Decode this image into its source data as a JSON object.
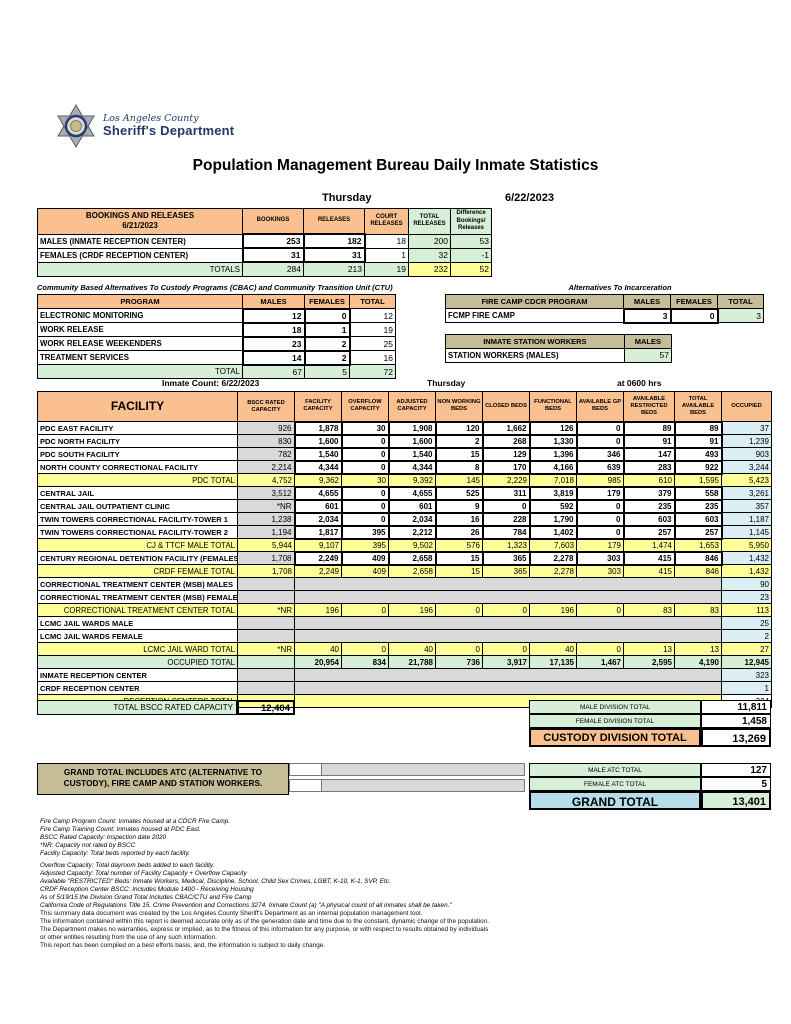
{
  "header": {
    "agency_line1": "Los Angeles County",
    "agency_line2": "Sheriff's Department",
    "title": "Population Management Bureau Daily Inmate Statistics",
    "day": "Thursday",
    "date": "6/22/2023"
  },
  "bookings": {
    "title": "BOOKINGS AND RELEASES",
    "subtitle": "6/21/2023",
    "columns": [
      "BOOKINGS",
      "RELEASES",
      "COURT RELEASES",
      "TOTAL RELEASES",
      "Difference Bookings/ Releases"
    ],
    "rows": [
      {
        "label": "MALES (INMATE RECEPTION CENTER)",
        "values": [
          "253",
          "182",
          "18",
          "200",
          "53"
        ]
      },
      {
        "label": "FEMALES (CRDF RECEPTION CENTER)",
        "values": [
          "31",
          "31",
          "1",
          "32",
          "-1"
        ]
      }
    ],
    "totals": {
      "label": "TOTALS",
      "values": [
        "284",
        "213",
        "19",
        "232",
        "52"
      ]
    }
  },
  "cbac": {
    "title": "Community Based Alternatives To Custody Programs (CBAC) and Community Transition Unit (CTU)",
    "columns": [
      "PROGRAM",
      "MALES",
      "FEMALES",
      "TOTAL"
    ],
    "rows": [
      {
        "label": "ELECTRONIC MONITORING",
        "values": [
          "12",
          "0",
          "12"
        ]
      },
      {
        "label": "WORK RELEASE",
        "values": [
          "18",
          "1",
          "19"
        ]
      },
      {
        "label": "WORK RELEASE WEEKENDERS",
        "values": [
          "23",
          "2",
          "25"
        ]
      },
      {
        "label": "TREATMENT SERVICES",
        "values": [
          "14",
          "2",
          "16"
        ]
      }
    ],
    "totals": {
      "label": "TOTAL",
      "values": [
        "67",
        "5",
        "72"
      ]
    }
  },
  "alternatives": {
    "title": "Alternatives To Incarceration",
    "fire_camp": {
      "columns": [
        "FIRE CAMP CDCR PROGRAM",
        "MALES",
        "FEMALES",
        "TOTAL"
      ],
      "row": {
        "label": "FCMP FIRE CAMP",
        "values": [
          "3",
          "0",
          "3"
        ]
      }
    },
    "station_workers": {
      "columns": [
        "INMATE STATION WORKERS",
        "MALES"
      ],
      "row": {
        "label": "STATION WORKERS (MALES)",
        "values": [
          "57"
        ]
      }
    }
  },
  "facility_table": {
    "count_label": "Inmate Count:  6/22/2023",
    "day": "Thursday",
    "time": "at 0600 hrs",
    "columns": [
      "FACILITY",
      "BSCC RATED CAPACITY",
      "FACILITY CAPACITY",
      "OVERFLOW CAPACITY",
      "ADJUSTED CAPACITY",
      "NON WORKING BEDS",
      "CLOSED BEDS",
      "FUNCTIONAL BEDS",
      "AVAILABLE GP BEDS",
      "AVAILABLE RESTRICTED BEDS",
      "TOTAL AVAILABLE BEDS",
      "OCCUPIED"
    ],
    "rows": [
      {
        "type": "data",
        "name": "PDC EAST FACILITY",
        "values": [
          "926",
          "1,878",
          "30",
          "1,908",
          "120",
          "1,662",
          "126",
          "0",
          "89",
          "89",
          "37"
        ]
      },
      {
        "type": "data",
        "name": "PDC NORTH FACILITY",
        "values": [
          "830",
          "1,600",
          "0",
          "1,600",
          "2",
          "268",
          "1,330",
          "0",
          "91",
          "91",
          "1,239"
        ]
      },
      {
        "type": "data",
        "name": "PDC SOUTH FACILITY",
        "values": [
          "782",
          "1,540",
          "0",
          "1,540",
          "15",
          "129",
          "1,396",
          "346",
          "147",
          "493",
          "903"
        ]
      },
      {
        "type": "data",
        "name": "NORTH COUNTY CORRECTIONAL FACILITY",
        "values": [
          "2,214",
          "4,344",
          "0",
          "4,344",
          "8",
          "170",
          "4,166",
          "639",
          "283",
          "922",
          "3,244"
        ]
      },
      {
        "type": "total",
        "name": "PDC TOTAL",
        "values": [
          "4,752",
          "9,362",
          "30",
          "9,392",
          "145",
          "2,229",
          "7,018",
          "985",
          "610",
          "1,595",
          "5,423"
        ]
      },
      {
        "type": "data",
        "name": "CENTRAL JAIL",
        "values": [
          "3,512",
          "4,655",
          "0",
          "4,655",
          "525",
          "311",
          "3,819",
          "179",
          "379",
          "558",
          "3,261"
        ]
      },
      {
        "type": "data",
        "name": "CENTRAL JAIL OUTPATIENT CLINIC",
        "values": [
          "*NR",
          "601",
          "0",
          "601",
          "9",
          "0",
          "592",
          "0",
          "235",
          "235",
          "357"
        ]
      },
      {
        "type": "data",
        "name": "TWIN TOWERS CORRECTIONAL FACILITY-TOWER 1",
        "values": [
          "1,238",
          "2,034",
          "0",
          "2,034",
          "16",
          "228",
          "1,790",
          "0",
          "603",
          "603",
          "1,187"
        ]
      },
      {
        "type": "data",
        "name": "TWIN TOWERS CORRECTIONAL FACILITY-TOWER 2",
        "values": [
          "1,194",
          "1,817",
          "395",
          "2,212",
          "26",
          "784",
          "1,402",
          "0",
          "257",
          "257",
          "1,145"
        ]
      },
      {
        "type": "total",
        "name": "CJ & TTCF MALE TOTAL",
        "values": [
          "5,944",
          "9,107",
          "395",
          "9,502",
          "576",
          "1,323",
          "7,603",
          "179",
          "1,474",
          "1,653",
          "5,950"
        ]
      },
      {
        "type": "data",
        "name": "CENTURY REGIONAL DETENTION FACILITY (FEMALES)",
        "values": [
          "1,708",
          "2,249",
          "409",
          "2,658",
          "15",
          "365",
          "2,278",
          "303",
          "415",
          "846",
          "1,432"
        ]
      },
      {
        "type": "total",
        "name": "CRDF FEMALE TOTAL",
        "values": [
          "1,708",
          "2,249",
          "409",
          "2,658",
          "15",
          "365",
          "2,278",
          "303",
          "415",
          "846",
          "1,432"
        ]
      },
      {
        "type": "merged",
        "name": "CORRECTIONAL TREATMENT CENTER (MSB) MALES",
        "occupied": "90"
      },
      {
        "type": "merged",
        "name": "CORRECTIONAL TREATMENT CENTER (MSB) FEMALES",
        "occupied": "23"
      },
      {
        "type": "total",
        "name": "CORRECTIONAL TREATMENT CENTER  TOTAL",
        "values": [
          "*NR",
          "196",
          "0",
          "196",
          "0",
          "0",
          "196",
          "0",
          "83",
          "83",
          "113"
        ]
      },
      {
        "type": "merged",
        "name": "LCMC JAIL WARDS MALE",
        "occupied": "25"
      },
      {
        "type": "merged",
        "name": "LCMC JAIL WARDS FEMALE",
        "occupied": "2"
      },
      {
        "type": "total",
        "name": "LCMC JAIL WARD TOTAL",
        "values": [
          "*NR",
          "40",
          "0",
          "40",
          "0",
          "0",
          "40",
          "0",
          "13",
          "13",
          "27"
        ]
      },
      {
        "type": "grand",
        "name": "OCCUPIED TOTAL",
        "values": [
          "",
          "20,954",
          "834",
          "21,788",
          "736",
          "3,917",
          "17,135",
          "1,467",
          "2,595",
          "4,190",
          "12,945"
        ]
      },
      {
        "type": "merged",
        "name": "INMATE RECEPTION CENTER",
        "occupied": "323"
      },
      {
        "type": "merged",
        "name": "CRDF RECEPTION CENTER",
        "occupied": "1"
      },
      {
        "type": "tmerged",
        "name": "RECEPTION CENTERS TOTAL",
        "occupied": "324"
      }
    ],
    "bscc_total": {
      "label": "TOTAL BSCC RATED CAPACITY",
      "value": "12,404"
    },
    "division_totals": [
      {
        "label": "MALE DIVISION TOTAL",
        "value": "11,811"
      },
      {
        "label": "FEMALE DIVISION TOTAL",
        "value": "1,458"
      }
    ],
    "custody_total": {
      "label": "CUSTODY DIVISION TOTAL",
      "value": "13,269"
    }
  },
  "grand_section": {
    "note": "GRAND TOTAL INCLUDES ATC (ALTERNATIVE TO CUSTODY), FIRE CAMP AND STATION WORKERS.",
    "atc_totals": [
      {
        "label": "MALE ATC TOTAL",
        "value": "127"
      },
      {
        "label": "FEMALE ATC TOTAL",
        "value": "5"
      }
    ],
    "grand_total": {
      "label": "GRAND TOTAL",
      "value": "13,401"
    }
  },
  "footnotes_a": [
    "Fire Camp Program Count: Inmates housed at a CDCR Fire Camp.",
    "Fire Camp Training Count: Inmates housed at PDC East.",
    "BSCC Rated Capacity: Inspection date 2020",
    "*NR: Capacity not rated by BSCC",
    "Facility Capacity: Total beds reported by each facility."
  ],
  "footnotes_b": [
    "Overflow Capacity: Total dayroom beds added to each facility.",
    "Adjusted Capacity: Total number of Facility Capacity + Overflow Capacity",
    "Available \"RESTRICTED\" Beds: Inmate Workers, Medical, Discipline, School, Child Sex Crimes,  LGBT, K-10, K-1, SVP, Etc.",
    "CRDF Reception Center BSCC: Includes Module 1400 - Receiving Housing",
    "As of 5/19/15 the Division Grand Total Includes CBAC/CTU and Fire Camp",
    "California Code of Regulations Title 15. Crime Prevention and Corrections 3274. Inmate Count (a) \"A physical count of all inmates shall be taken.\""
  ],
  "disclaimer": [
    "This summary data document was created by the Los Angeles County Sheriff's Department as an internal population management tool.",
    "The information contained within this report is deemed accurate only as of the generation date and time due to the constant, dynamic change of the population.",
    "The Department makes no warranties, express or implied, as to the fitness of this information for any purpose, or with respect to results obtained by individuals",
    "or other entities resulting from the use of any such information.",
    "This report has been compiled on a best efforts basis, and, the information is subject to daily change."
  ]
}
